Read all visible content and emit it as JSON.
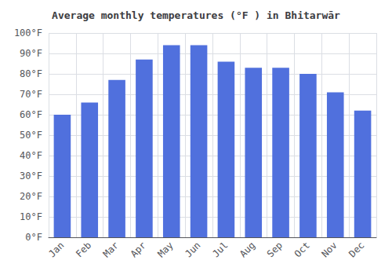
{
  "chart_data": {
    "type": "bar",
    "title": "Average monthly temperatures (°F ) in Bhitarwār",
    "categories": [
      "Jan",
      "Feb",
      "Mar",
      "Apr",
      "May",
      "Jun",
      "Jul",
      "Aug",
      "Sep",
      "Oct",
      "Nov",
      "Dec"
    ],
    "values": [
      60,
      66,
      77,
      87,
      94,
      94,
      86,
      83,
      83,
      80,
      71,
      62
    ],
    "ylim": [
      0,
      100
    ],
    "yticks": [
      {
        "value": 0,
        "label": "0°F"
      },
      {
        "value": 10,
        "label": "10°F"
      },
      {
        "value": 20,
        "label": "20°F"
      },
      {
        "value": 30,
        "label": "30°F"
      },
      {
        "value": 40,
        "label": "40°F"
      },
      {
        "value": 50,
        "label": "50°F"
      },
      {
        "value": 60,
        "label": "60°F"
      },
      {
        "value": 70,
        "label": "70°F"
      },
      {
        "value": 80,
        "label": "80°F"
      },
      {
        "value": 90,
        "label": "90°F"
      },
      {
        "value": 100,
        "label": "100°F"
      }
    ],
    "grid": true
  }
}
